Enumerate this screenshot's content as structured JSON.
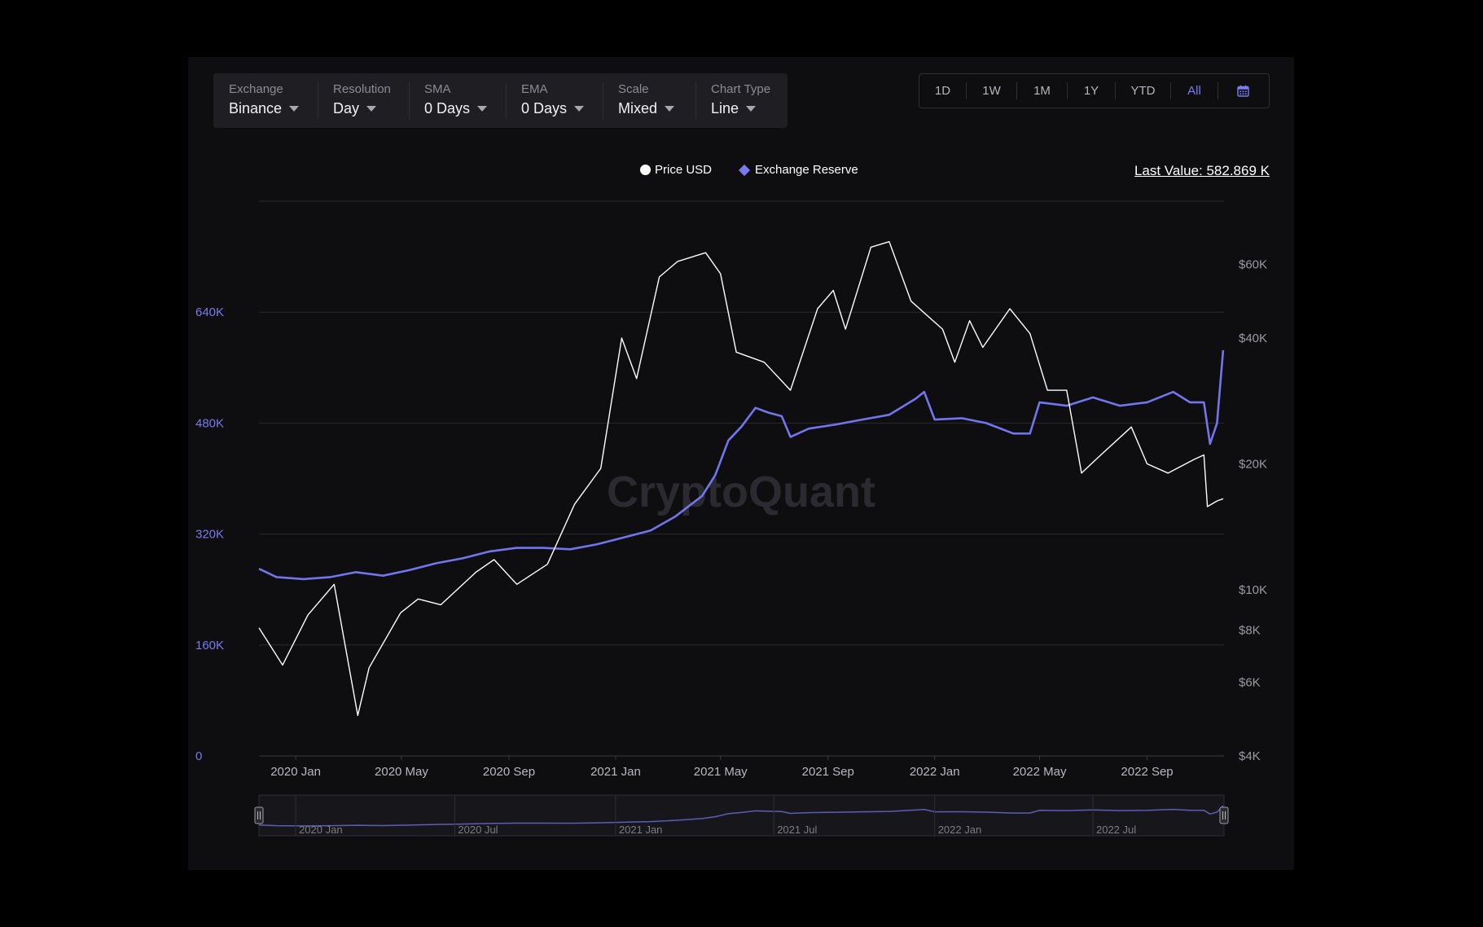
{
  "toolbar": {
    "controls": [
      {
        "label": "Exchange",
        "value": "Binance"
      },
      {
        "label": "Resolution",
        "value": "Day"
      },
      {
        "label": "SMA",
        "value": "0 Days"
      },
      {
        "label": "EMA",
        "value": "0 Days"
      },
      {
        "label": "Scale",
        "value": "Mixed"
      },
      {
        "label": "Chart Type",
        "value": "Line"
      }
    ]
  },
  "ranges": {
    "items": [
      "1D",
      "1W",
      "1M",
      "1Y",
      "YTD",
      "All"
    ],
    "active": "All",
    "calendar_icon": "calendar-icon"
  },
  "last_value": "Last Value: 582.869 K",
  "watermark": "CryptoQuant",
  "colors": {
    "reserve": "#7474ee",
    "price": "#ffffff",
    "grid": "#2a2a2e",
    "axis_left": "#7a7af0",
    "axis_right": "#9a9aa3",
    "background": "#0e0e10"
  },
  "navigator": {
    "labels": [
      "2020 Jan",
      "2020 Jul",
      "2021 Jan",
      "2021 Jul",
      "2022 Jan",
      "2022 Jul"
    ]
  },
  "chart_data": {
    "type": "line",
    "legend": [
      "Price USD",
      "Exchange Reserve"
    ],
    "legend_position": "top-center",
    "x_labels": [
      "2020 Jan",
      "2020 May",
      "2020 Sep",
      "2021 Jan",
      "2021 May",
      "2021 Sep",
      "2022 Jan",
      "2022 May",
      "2022 Sep"
    ],
    "x_range": [
      "2019-11-20",
      "2022-11-28"
    ],
    "y_left": {
      "ticks": [
        0,
        160000,
        320000,
        480000,
        640000
      ],
      "tick_labels": [
        "0",
        "160K",
        "320K",
        "480K",
        "640K"
      ],
      "range": [
        0,
        800000
      ],
      "scale": "linear",
      "series": "Exchange Reserve"
    },
    "y_right": {
      "ticks": [
        4000,
        6000,
        8000,
        10000,
        20000,
        40000,
        60000
      ],
      "tick_labels": [
        "$4K",
        "$6K",
        "$8K",
        "$10K",
        "$20K",
        "$40K",
        "$60K"
      ],
      "range": [
        4000,
        85000
      ],
      "scale": "log",
      "series": "Price USD"
    },
    "grid": true,
    "series": [
      {
        "name": "Exchange Reserve",
        "axis": "left",
        "points": [
          [
            "2019-11-20",
            270000
          ],
          [
            "2019-12-10",
            258000
          ],
          [
            "2020-01-10",
            255000
          ],
          [
            "2020-02-10",
            258000
          ],
          [
            "2020-03-10",
            265000
          ],
          [
            "2020-04-10",
            260000
          ],
          [
            "2020-05-10",
            268000
          ],
          [
            "2020-06-10",
            278000
          ],
          [
            "2020-07-10",
            285000
          ],
          [
            "2020-08-10",
            295000
          ],
          [
            "2020-09-10",
            300000
          ],
          [
            "2020-10-10",
            300000
          ],
          [
            "2020-11-10",
            298000
          ],
          [
            "2020-12-10",
            305000
          ],
          [
            "2021-01-10",
            315000
          ],
          [
            "2021-02-10",
            325000
          ],
          [
            "2021-03-10",
            345000
          ],
          [
            "2021-04-10",
            375000
          ],
          [
            "2021-04-25",
            405000
          ],
          [
            "2021-05-10",
            455000
          ],
          [
            "2021-05-25",
            475000
          ],
          [
            "2021-06-10",
            502000
          ],
          [
            "2021-06-25",
            495000
          ],
          [
            "2021-07-10",
            490000
          ],
          [
            "2021-07-20",
            460000
          ],
          [
            "2021-08-10",
            472000
          ],
          [
            "2021-09-10",
            478000
          ],
          [
            "2021-10-10",
            485000
          ],
          [
            "2021-11-10",
            492000
          ],
          [
            "2021-12-10",
            515000
          ],
          [
            "2021-12-20",
            525000
          ],
          [
            "2022-01-01",
            485000
          ],
          [
            "2022-02-01",
            487000
          ],
          [
            "2022-03-01",
            480000
          ],
          [
            "2022-04-01",
            465000
          ],
          [
            "2022-04-20",
            465000
          ],
          [
            "2022-05-01",
            510000
          ],
          [
            "2022-06-01",
            505000
          ],
          [
            "2022-07-01",
            517000
          ],
          [
            "2022-08-01",
            505000
          ],
          [
            "2022-09-01",
            510000
          ],
          [
            "2022-10-01",
            525000
          ],
          [
            "2022-10-20",
            510000
          ],
          [
            "2022-11-05",
            510000
          ],
          [
            "2022-11-12",
            450000
          ],
          [
            "2022-11-20",
            480000
          ],
          [
            "2022-11-27",
            585000
          ]
        ]
      },
      {
        "name": "Price USD",
        "axis": "right",
        "points": [
          [
            "2019-11-20",
            8100
          ],
          [
            "2019-12-17",
            6600
          ],
          [
            "2020-01-15",
            8700
          ],
          [
            "2020-02-14",
            10300
          ],
          [
            "2020-03-12",
            5000
          ],
          [
            "2020-03-25",
            6500
          ],
          [
            "2020-04-30",
            8800
          ],
          [
            "2020-05-20",
            9500
          ],
          [
            "2020-06-15",
            9200
          ],
          [
            "2020-07-25",
            11000
          ],
          [
            "2020-08-15",
            11800
          ],
          [
            "2020-09-10",
            10300
          ],
          [
            "2020-10-15",
            11500
          ],
          [
            "2020-11-15",
            16000
          ],
          [
            "2020-12-15",
            19500
          ],
          [
            "2021-01-08",
            40000
          ],
          [
            "2021-01-25",
            32000
          ],
          [
            "2021-02-20",
            56000
          ],
          [
            "2021-03-13",
            61000
          ],
          [
            "2021-04-14",
            64000
          ],
          [
            "2021-05-01",
            57000
          ],
          [
            "2021-05-19",
            37000
          ],
          [
            "2021-06-20",
            35000
          ],
          [
            "2021-07-20",
            30000
          ],
          [
            "2021-08-20",
            47000
          ],
          [
            "2021-09-07",
            52000
          ],
          [
            "2021-09-21",
            42000
          ],
          [
            "2021-10-20",
            66000
          ],
          [
            "2021-11-10",
            68000
          ],
          [
            "2021-12-05",
            49000
          ],
          [
            "2022-01-10",
            42000
          ],
          [
            "2022-01-24",
            35000
          ],
          [
            "2022-02-10",
            44000
          ],
          [
            "2022-02-25",
            38000
          ],
          [
            "2022-03-28",
            47000
          ],
          [
            "2022-04-20",
            41000
          ],
          [
            "2022-05-10",
            30000
          ],
          [
            "2022-06-01",
            30000
          ],
          [
            "2022-06-18",
            19000
          ],
          [
            "2022-07-10",
            21000
          ],
          [
            "2022-08-14",
            24500
          ],
          [
            "2022-09-01",
            20000
          ],
          [
            "2022-09-25",
            19000
          ],
          [
            "2022-10-25",
            20500
          ],
          [
            "2022-11-05",
            21000
          ],
          [
            "2022-11-09",
            15800
          ],
          [
            "2022-11-20",
            16300
          ],
          [
            "2022-11-27",
            16500
          ]
        ]
      }
    ]
  }
}
